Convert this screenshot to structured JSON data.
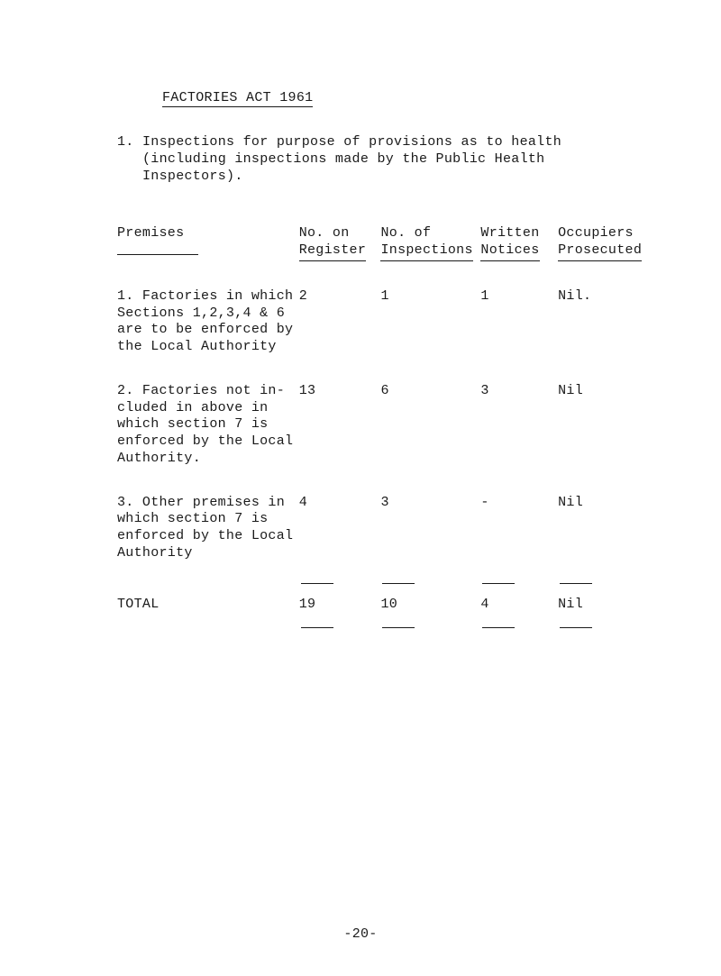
{
  "title": "FACTORIES ACT 1961",
  "intro": {
    "num": "1.",
    "text_line1": "Inspections for purpose of provisions as to health",
    "text_line2": "(including inspections made by the Public Health Inspectors)."
  },
  "headers": {
    "premises": "Premises",
    "no_on": "No. on",
    "register": "Register",
    "no_of": "No. of",
    "inspections": "Inspections",
    "written": "Written",
    "notices": "Notices",
    "occupiers": "Occupiers",
    "prosecuted": "Prosecuted"
  },
  "rows": [
    {
      "premises": "1. Factories in which Sections 1,2,3,4 & 6 are to be enforced by the Local Authority",
      "no_on_register": "2",
      "no_of_inspections": "1",
      "written_notices": "1",
      "occupiers_prosecuted": "Nil."
    },
    {
      "premises": "2. Factories not in-\ncluded in above in which section 7 is enforced by the Local Authority.",
      "no_on_register": "13",
      "no_of_inspections": "6",
      "written_notices": "3",
      "occupiers_prosecuted": "Nil"
    },
    {
      "premises": "3. Other premises in which section 7 is enforced by the Local Authority",
      "no_on_register": "4",
      "no_of_inspections": "3",
      "written_notices": "-",
      "occupiers_prosecuted": "Nil"
    }
  ],
  "total": {
    "label": "TOTAL",
    "no_on_register": "19",
    "no_of_inspections": "10",
    "written_notices": "4",
    "occupiers_prosecuted": "Nil"
  },
  "page_number": "-20-"
}
